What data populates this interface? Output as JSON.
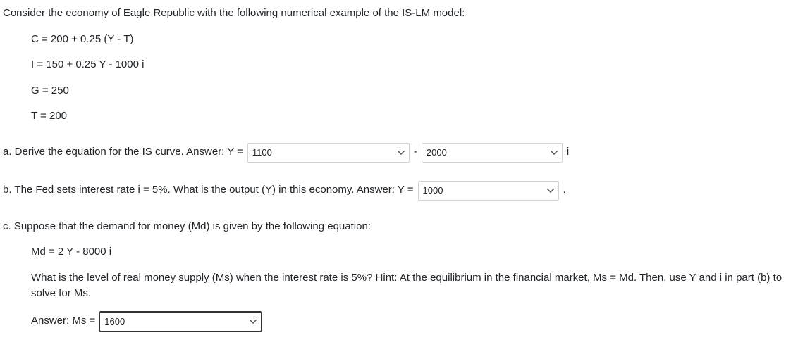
{
  "intro": "Consider the economy of Eagle Republic with the following numerical example of the IS-LM model:",
  "equations": {
    "c": "C = 200 + 0.25 (Y - T)",
    "i": "I = 150 + 0.25 Y - 1000 i",
    "g": "G = 250",
    "t": "T = 200"
  },
  "partA": {
    "prompt": "a. Derive the equation for the IS curve. Answer: Y =",
    "select1_value": "1100",
    "minus": "-",
    "select2_value": "2000",
    "trailing": "i"
  },
  "partB": {
    "prompt": "b. The Fed sets interest rate i = 5%. What is the output (Y) in this economy. Answer: Y =",
    "select_value": "1000",
    "trailing": "."
  },
  "partC": {
    "prompt": "c. Suppose that the demand for money (Md) is given by the following equation:",
    "md_eq": "Md = 2 Y - 8000 i",
    "hint": "What is the level of real money supply (Ms) when the interest rate is 5%? Hint: At the equilibrium in the financial market, Ms = Md. Then, use Y and i in part (b) to solve for Ms.",
    "answer_label": "Answer: Ms =",
    "select_value": "1600"
  }
}
